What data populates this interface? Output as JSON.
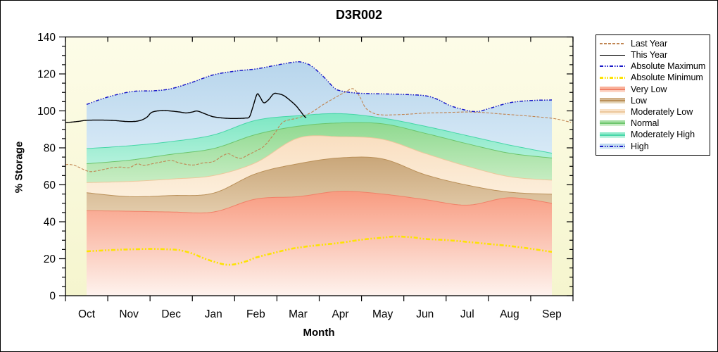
{
  "chart": {
    "title": "D3R002",
    "xlabel": "Month",
    "ylabel": "% Storage"
  },
  "palette": {
    "very_low": {
      "fill_top": "#F89B80",
      "fill_bottom": "#FEF3EE",
      "edge": "#F08168",
      "legend_top": "#F9A98F",
      "legend_bottom": "#FCDCCF"
    },
    "low": {
      "fill_top": "#C9A679",
      "fill_bottom": "#E3CCAB",
      "edge": "#BA9058",
      "legend_top": "#CCAA7E",
      "legend_bottom": "#EADDC3"
    },
    "mod_low": {
      "fill_top": "#F9DEC0",
      "fill_bottom": "#FCEFDC",
      "edge": "#ECC89C",
      "legend_top": "#F8DFC2",
      "legend_bottom": "#FCF1E2"
    },
    "normal": {
      "fill_top": "#8FD98F",
      "fill_bottom": "#C8EDC4",
      "edge": "#6CC56C",
      "legend_top": "#98DC98",
      "legend_bottom": "#D3F0CF"
    },
    "mod_high": {
      "fill_top": "#7BE7C2",
      "fill_bottom": "#B4F1DC",
      "edge": "#46D6A8",
      "legend_top": "#82E8C5",
      "legend_bottom": "#C5F4E3"
    },
    "high": {
      "fill_top": "#B7D5EC",
      "fill_bottom": "#D7E9F6",
      "edge": "#1A1AC8",
      "legend_top": "#B9D7EE",
      "legend_bottom": "#DCEBF7"
    },
    "background_top": "#FDFCE8",
    "background_bottom": "#F5F5CE",
    "axis": "#000000"
  },
  "legend": {
    "items": [
      {
        "label": "Last Year",
        "kind": "line",
        "style": "dashed",
        "color": "#C08552"
      },
      {
        "label": "This Year",
        "kind": "line",
        "style": "solid",
        "color": "#000000"
      },
      {
        "label": "Absolute Maximum",
        "kind": "line",
        "style": "dashdot",
        "color": "#1A1AC8"
      },
      {
        "label": "Absolute Minimum",
        "kind": "line",
        "style": "dashdot-thick",
        "color": "#FCE303"
      },
      {
        "label": "Very Low",
        "kind": "band",
        "key": "very_low"
      },
      {
        "label": "Low",
        "kind": "band",
        "key": "low"
      },
      {
        "label": "Moderately Low",
        "kind": "band",
        "key": "mod_low"
      },
      {
        "label": "Normal",
        "kind": "band",
        "key": "normal"
      },
      {
        "label": "Moderately High",
        "kind": "band",
        "key": "mod_high"
      },
      {
        "label": "High",
        "kind": "band",
        "key": "high",
        "overlay_line": "#1A1AC8"
      }
    ]
  },
  "chart_data": {
    "type": "area",
    "title": "D3R002",
    "xlabel": "Month",
    "ylabel": "% Storage",
    "ylim": [
      0,
      140
    ],
    "y_ticks": [
      0,
      20,
      40,
      60,
      80,
      100,
      120,
      140
    ],
    "y_minor_step": 5,
    "grid": false,
    "legend_position": "right-outside",
    "categories": [
      "Oct",
      "Nov",
      "Dec",
      "Jan",
      "Feb",
      "Mar",
      "Apr",
      "May",
      "Jun",
      "Jul",
      "Aug",
      "Sep"
    ],
    "bands_note": "upper = % storage at each month Oct..Sep; bands stack bottom-up from 0",
    "bands": [
      {
        "name": "Very Low",
        "key": "very_low",
        "upper": [
          46.0,
          45.7,
          45.3,
          45.3,
          52.3,
          53.6,
          56.5,
          55.0,
          52.0,
          49.0,
          53.0,
          50.0
        ]
      },
      {
        "name": "Low",
        "key": "low",
        "upper": [
          55.7,
          53.6,
          54.2,
          55.5,
          66.0,
          71.4,
          74.6,
          74.0,
          65.5,
          59.8,
          56.0,
          54.9
        ]
      },
      {
        "name": "Moderately Low",
        "key": "mod_low",
        "upper": [
          61.2,
          61.8,
          63.1,
          65.0,
          72.0,
          85.3,
          86.0,
          84.6,
          77.0,
          70.0,
          64.4,
          62.5
        ]
      },
      {
        "name": "Normal",
        "key": "normal",
        "upper": [
          71.4,
          73.3,
          76.5,
          79.6,
          87.2,
          91.7,
          93.5,
          93.0,
          87.9,
          82.2,
          77.1,
          74.5
        ]
      },
      {
        "name": "Moderately High",
        "key": "mod_high",
        "upper": [
          79.6,
          81.1,
          83.4,
          87.0,
          94.9,
          97.4,
          98.5,
          96.1,
          91.7,
          86.6,
          81.5,
          77.1
        ]
      },
      {
        "name": "High",
        "key": "high",
        "upper_line": "abs_max"
      }
    ],
    "lines": [
      {
        "name": "Absolute Minimum",
        "key": "abs_min",
        "color": "#FCE303",
        "width": 2.6,
        "dash": "6,2.5,2,2.5,2,2.5",
        "points": [
          [
            0,
            24
          ],
          [
            0.4,
            24.5
          ],
          [
            0.8,
            24.9
          ],
          [
            1.1,
            25.1
          ],
          [
            1.5,
            25.3
          ],
          [
            1.9,
            25.1
          ],
          [
            2.2,
            24.6
          ],
          [
            2.5,
            22.8
          ],
          [
            2.8,
            20
          ],
          [
            3.1,
            17.8
          ],
          [
            3.3,
            16.8
          ],
          [
            3.5,
            17
          ],
          [
            3.8,
            18.8
          ],
          [
            4,
            20.6
          ],
          [
            4.4,
            23
          ],
          [
            4.8,
            25.2
          ],
          [
            5.1,
            26.3
          ],
          [
            5.5,
            27.4
          ],
          [
            6,
            28.6
          ],
          [
            6.5,
            30.3
          ],
          [
            7,
            31.4
          ],
          [
            7.3,
            32
          ],
          [
            7.7,
            31.6
          ],
          [
            8,
            30.7
          ],
          [
            8.5,
            30.1
          ],
          [
            9,
            29.1
          ],
          [
            9.5,
            28
          ],
          [
            10,
            26.9
          ],
          [
            10.5,
            25.4
          ],
          [
            11,
            23.7
          ]
        ]
      },
      {
        "name": "Last Year",
        "key": "last_year",
        "color": "#C08552",
        "width": 1.1,
        "dash": "4,2",
        "points": [
          [
            -0.5,
            71
          ],
          [
            -0.3,
            70.6
          ],
          [
            0,
            67.6
          ],
          [
            0.15,
            67.2
          ],
          [
            0.4,
            68.3
          ],
          [
            0.6,
            69.2
          ],
          [
            0.8,
            69.6
          ],
          [
            1,
            69.2
          ],
          [
            1.2,
            71.3
          ],
          [
            1.35,
            70.5
          ],
          [
            1.6,
            71.6
          ],
          [
            1.8,
            72.5
          ],
          [
            2,
            73.2
          ],
          [
            2.2,
            71.8
          ],
          [
            2.5,
            70.7
          ],
          [
            2.75,
            71.8
          ],
          [
            3,
            72.6
          ],
          [
            3.2,
            75.5
          ],
          [
            3.35,
            76.8
          ],
          [
            3.5,
            75.2
          ],
          [
            3.65,
            74.3
          ],
          [
            3.8,
            76
          ],
          [
            4,
            78.3
          ],
          [
            4.2,
            81
          ],
          [
            4.45,
            88
          ],
          [
            4.65,
            94
          ],
          [
            5,
            96.2
          ],
          [
            5.3,
            99
          ],
          [
            5.6,
            103.5
          ],
          [
            5.9,
            107.5
          ],
          [
            6.1,
            110
          ],
          [
            6.3,
            112
          ],
          [
            6.45,
            108
          ],
          [
            6.6,
            101.5
          ],
          [
            6.8,
            98.6
          ],
          [
            7,
            97.8
          ],
          [
            7.3,
            97.9
          ],
          [
            7.6,
            98.2
          ],
          [
            8,
            98.8
          ],
          [
            8.5,
            99.1
          ],
          [
            9,
            99.4
          ],
          [
            9.4,
            99.1
          ],
          [
            9.7,
            98.5
          ],
          [
            10,
            98
          ],
          [
            10.4,
            97.3
          ],
          [
            10.7,
            96.7
          ],
          [
            11,
            96
          ],
          [
            11.2,
            95.2
          ],
          [
            11.45,
            93.8
          ]
        ]
      },
      {
        "name": "Absolute Maximum",
        "key": "abs_max",
        "color": "#1A1AC8",
        "width": 1.5,
        "dash": "5,2,1.5,2,1.5,2",
        "points": [
          [
            0,
            103.5
          ],
          [
            0.5,
            107.5
          ],
          [
            1,
            110.2
          ],
          [
            1.3,
            110.8
          ],
          [
            1.6,
            110.9
          ],
          [
            2,
            112
          ],
          [
            2.5,
            115.5
          ],
          [
            3,
            119.5
          ],
          [
            3.5,
            121.5
          ],
          [
            4,
            122.7
          ],
          [
            4.5,
            124.8
          ],
          [
            4.85,
            126.2
          ],
          [
            5.05,
            126.5
          ],
          [
            5.3,
            124.5
          ],
          [
            5.6,
            118.5
          ],
          [
            5.85,
            112.5
          ],
          [
            6,
            110.9
          ],
          [
            6.3,
            109.8
          ],
          [
            6.6,
            109.4
          ],
          [
            7,
            109.2
          ],
          [
            7.5,
            108.9
          ],
          [
            8,
            108.2
          ],
          [
            8.3,
            106.2
          ],
          [
            8.6,
            102.8
          ],
          [
            9,
            100.2
          ],
          [
            9.25,
            99.7
          ],
          [
            9.55,
            101.5
          ],
          [
            10,
            104.4
          ],
          [
            10.5,
            105.6
          ],
          [
            11,
            105.9
          ]
        ]
      },
      {
        "name": "This Year",
        "key": "this_year",
        "color": "#000000",
        "width": 1.4,
        "dash": "",
        "points": [
          [
            -0.5,
            93.6
          ],
          [
            -0.2,
            94.3
          ],
          [
            0,
            94.9
          ],
          [
            0.35,
            95
          ],
          [
            0.65,
            94.8
          ],
          [
            1,
            94.2
          ],
          [
            1.25,
            94.7
          ],
          [
            1.42,
            96.5
          ],
          [
            1.55,
            99.3
          ],
          [
            1.8,
            100.2
          ],
          [
            2,
            99.9
          ],
          [
            2.2,
            99.4
          ],
          [
            2.35,
            98.9
          ],
          [
            2.5,
            99.4
          ],
          [
            2.62,
            99.9
          ],
          [
            2.8,
            98.4
          ],
          [
            3,
            96.8
          ],
          [
            3.3,
            96
          ],
          [
            3.55,
            95.9
          ],
          [
            3.75,
            96.1
          ],
          [
            3.85,
            96.8
          ],
          [
            3.93,
            102
          ],
          [
            4.03,
            109
          ],
          [
            4.1,
            107.5
          ],
          [
            4.19,
            104.4
          ],
          [
            4.3,
            106
          ],
          [
            4.42,
            109.2
          ],
          [
            4.52,
            109.3
          ],
          [
            4.66,
            108.3
          ],
          [
            4.82,
            105.5
          ],
          [
            4.95,
            102.8
          ],
          [
            5.05,
            100
          ],
          [
            5.14,
            97.3
          ],
          [
            5.19,
            96.3
          ]
        ]
      }
    ]
  }
}
